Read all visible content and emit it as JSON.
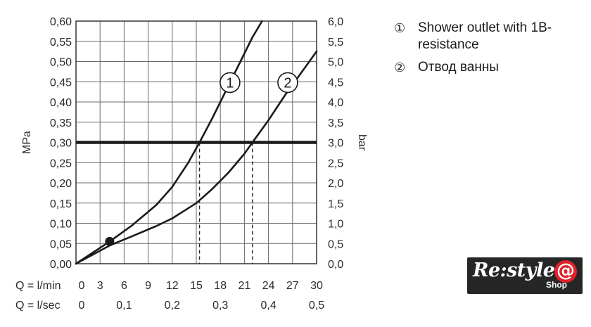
{
  "chart_data": {
    "type": "line",
    "y_left_label": "MPa",
    "y_right_label": "bar",
    "y_left_ticks": [
      "0,00",
      "0,05",
      "0,10",
      "0,15",
      "0,20",
      "0,25",
      "0,30",
      "0,35",
      "0,40",
      "0,45",
      "0,50",
      "0,55",
      "0,60"
    ],
    "y_right_ticks": [
      "0,0",
      "0,5",
      "1,0",
      "1,5",
      "2,0",
      "2,5",
      "3,0",
      "3,5",
      "4,0",
      "4,5",
      "5,0",
      "5,5",
      "6,0"
    ],
    "ylim": [
      0,
      0.6
    ],
    "xlim": [
      0,
      30
    ],
    "x_row1_label": "Q = l/min",
    "x_row1_ticks": [
      "0",
      "3",
      "6",
      "9",
      "12",
      "15",
      "18",
      "21",
      "24",
      "27",
      "30"
    ],
    "x_row2_label": "Q = l/sec",
    "x_row2_ticks": [
      "0",
      "0,1",
      "0,2",
      "0,3",
      "0,4",
      "0,5"
    ],
    "series": [
      {
        "name": "1",
        "color": "#1a1a1a",
        "x": [
          0,
          4.2,
          7,
          10,
          12,
          14,
          15.4,
          17,
          19,
          20.5,
          22,
          23.2
        ],
        "y": [
          0,
          0.055,
          0.095,
          0.145,
          0.19,
          0.25,
          0.3,
          0.36,
          0.44,
          0.5,
          0.56,
          0.6
        ]
      },
      {
        "name": "2",
        "color": "#1a1a1a",
        "x": [
          0,
          4.2,
          7,
          10,
          12,
          15,
          17,
          19,
          21,
          22,
          24,
          26,
          28,
          30
        ],
        "y": [
          0,
          0.045,
          0.068,
          0.093,
          0.112,
          0.15,
          0.185,
          0.225,
          0.272,
          0.3,
          0.355,
          0.415,
          0.47,
          0.525
        ]
      }
    ],
    "threshold": {
      "y": 0.3,
      "color": "#1a1a1a"
    },
    "dashed_markers": [
      {
        "x": 15.4,
        "y": 0.3
      },
      {
        "x": 22,
        "y": 0.3
      }
    ],
    "start_point": {
      "x": 4.2,
      "y": 0.055
    },
    "curve_labels": [
      {
        "text": "1",
        "x": 19.2,
        "y": 0.448
      },
      {
        "text": "2",
        "x": 26.4,
        "y": 0.448
      }
    ],
    "grid": true
  },
  "legend": [
    {
      "num": "①",
      "text": "Shower outlet with 1B-resistance"
    },
    {
      "num": "②",
      "text": "Отвод ванны"
    }
  ],
  "logo": {
    "text": "Re:style",
    "at": "@",
    "sub": "Shop"
  }
}
